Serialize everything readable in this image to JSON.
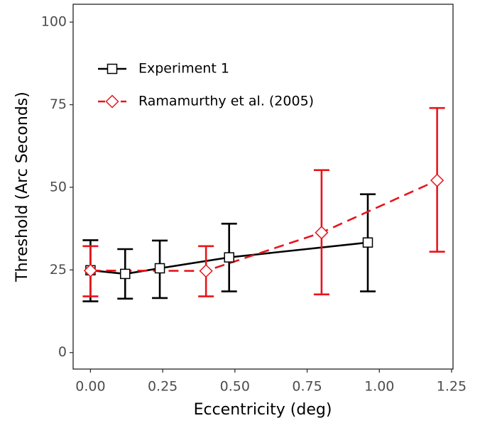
{
  "chart_data": {
    "type": "line",
    "xlabel": "Eccentricity (deg)",
    "ylabel": "Threshold (Arc Seconds)",
    "xlim": [
      -0.06,
      1.255
    ],
    "ylim": [
      -5,
      105.4
    ],
    "xticks": [
      {
        "value": 0,
        "label": "0.00"
      },
      {
        "value": 0.25,
        "label": "0.25"
      },
      {
        "value": 0.5,
        "label": "0.50"
      },
      {
        "value": 0.75,
        "label": "0.75"
      },
      {
        "value": 1,
        "label": "1.00"
      },
      {
        "value": 1.25,
        "label": "1.25"
      }
    ],
    "yticks": [
      0,
      25,
      50,
      75,
      100
    ],
    "grid": false,
    "legend": "top-left",
    "series": [
      {
        "name": "Experiment 1",
        "color": "#000000",
        "marker": "square",
        "linestyle": "solid",
        "x": [
          0,
          0.12,
          0.24,
          0.48,
          0.96
        ],
        "values": [
          24.9,
          23.8,
          25.5,
          28.8,
          33.3
        ],
        "lower": [
          15.5,
          16.3,
          16.5,
          18.5,
          18.5
        ],
        "upper": [
          34,
          31.3,
          33.9,
          39,
          47.9
        ]
      },
      {
        "name": "Ramamurthy et al. (2005)",
        "color": "#e8141c",
        "marker": "diamond",
        "linestyle": "dashed",
        "x": [
          0,
          0.4,
          0.8,
          1.2
        ],
        "values": [
          24.8,
          24.7,
          36.3,
          52.1
        ],
        "lower": [
          17,
          17,
          17.6,
          30.5
        ],
        "upper": [
          32.2,
          32.2,
          55.2,
          74
        ]
      }
    ]
  }
}
